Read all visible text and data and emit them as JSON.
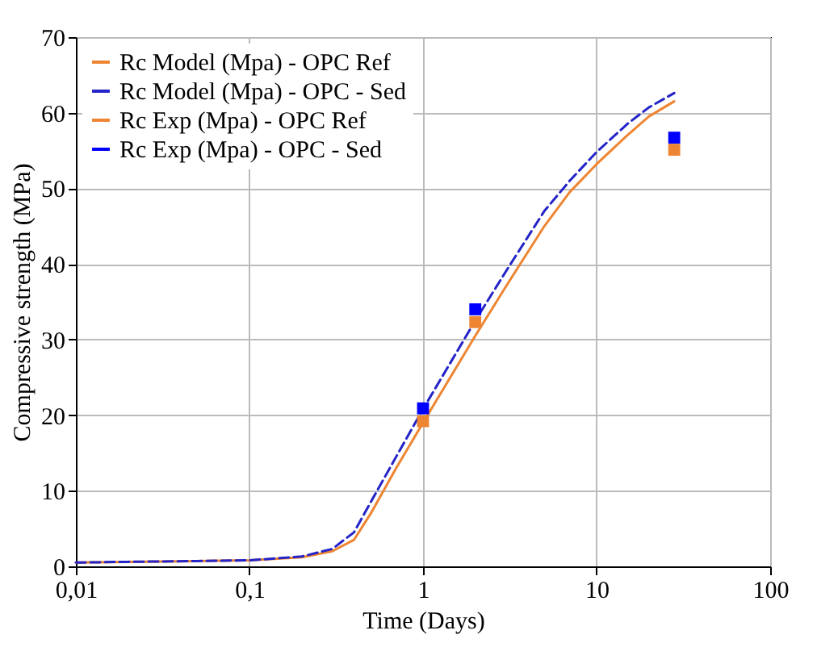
{
  "chart_data": {
    "type": "line",
    "xlabel": "Time (Days)",
    "ylabel": "Compressive strength (MPa)",
    "log": "x",
    "xlim": [
      0.01,
      100
    ],
    "xticks": [
      {
        "value": 0.01,
        "label": "0,01"
      },
      {
        "value": 0.1,
        "label": "0,1"
      },
      1,
      10,
      100
    ],
    "ylim": [
      0,
      70
    ],
    "yticks": [
      0,
      10,
      20,
      30,
      40,
      50,
      60,
      70
    ],
    "grid": true,
    "legend": "top left",
    "series": [
      {
        "name": "Rc Model (Mpa) - OPC Ref",
        "line_style": "solid",
        "color": "#ee8532",
        "x": [
          0.01,
          0.02,
          0.05,
          0.1,
          0.2,
          0.3,
          0.4,
          0.5,
          0.7,
          1,
          2,
          3,
          5,
          7,
          10,
          15,
          20,
          28
        ],
        "values": [
          0.5,
          0.6,
          0.7,
          0.8,
          1.2,
          2.0,
          3.5,
          7,
          13,
          19,
          30.5,
          37,
          45,
          49.5,
          53.2,
          57,
          59.5,
          61.5
        ]
      },
      {
        "name": "Rc Model (Mpa) - OPC - Sed",
        "line_style": "dashed",
        "color": "#2424c8",
        "x": [
          0.01,
          0.02,
          0.05,
          0.1,
          0.2,
          0.3,
          0.4,
          0.5,
          0.7,
          1,
          2,
          3,
          5,
          7,
          10,
          15,
          20,
          28
        ],
        "values": [
          0.5,
          0.6,
          0.7,
          0.8,
          1.3,
          2.3,
          4.5,
          8.5,
          14.5,
          20.8,
          32.5,
          39,
          47,
          51,
          54.8,
          58.5,
          60.7,
          62.6
        ]
      },
      {
        "name": "Rc Exp (Mpa) - OPC Ref",
        "type": "scatter",
        "marker": "square",
        "color": "#ee8532",
        "x": [
          1,
          2,
          28
        ],
        "values": [
          19.2,
          32.3,
          55.1
        ]
      },
      {
        "name": "Rc Exp (Mpa) - OPC - Sed",
        "type": "scatter",
        "marker": "square",
        "color": "#0000ff",
        "x": [
          1,
          2,
          28
        ],
        "values": [
          20.9,
          34,
          56.7
        ]
      }
    ]
  }
}
